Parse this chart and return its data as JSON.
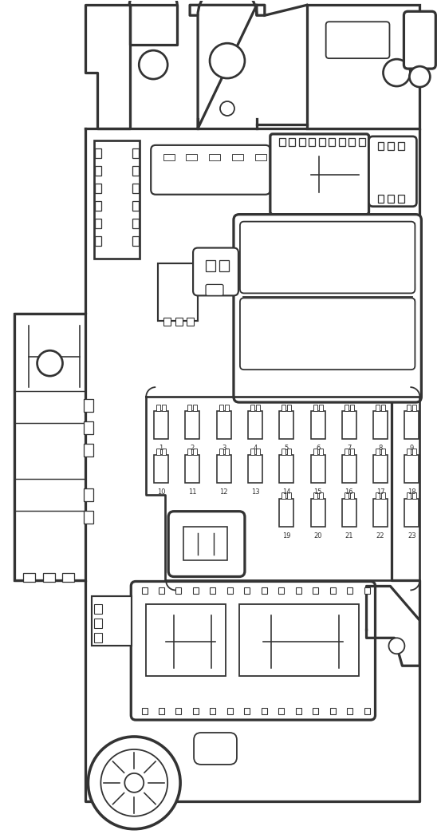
{
  "bg_color": "#ffffff",
  "line_color": "#333333",
  "lw": 1.3,
  "fig_w": 5.53,
  "fig_h": 10.5,
  "fuse_row1": [
    "1",
    "2",
    "3",
    "4",
    "5",
    "6",
    "7",
    "8",
    "9"
  ],
  "fuse_row2": [
    "10",
    "11",
    "12",
    "13",
    "14",
    "15",
    "16",
    "17",
    "18"
  ],
  "fuse_row3": [
    "19",
    "20",
    "21",
    "22",
    "23"
  ]
}
